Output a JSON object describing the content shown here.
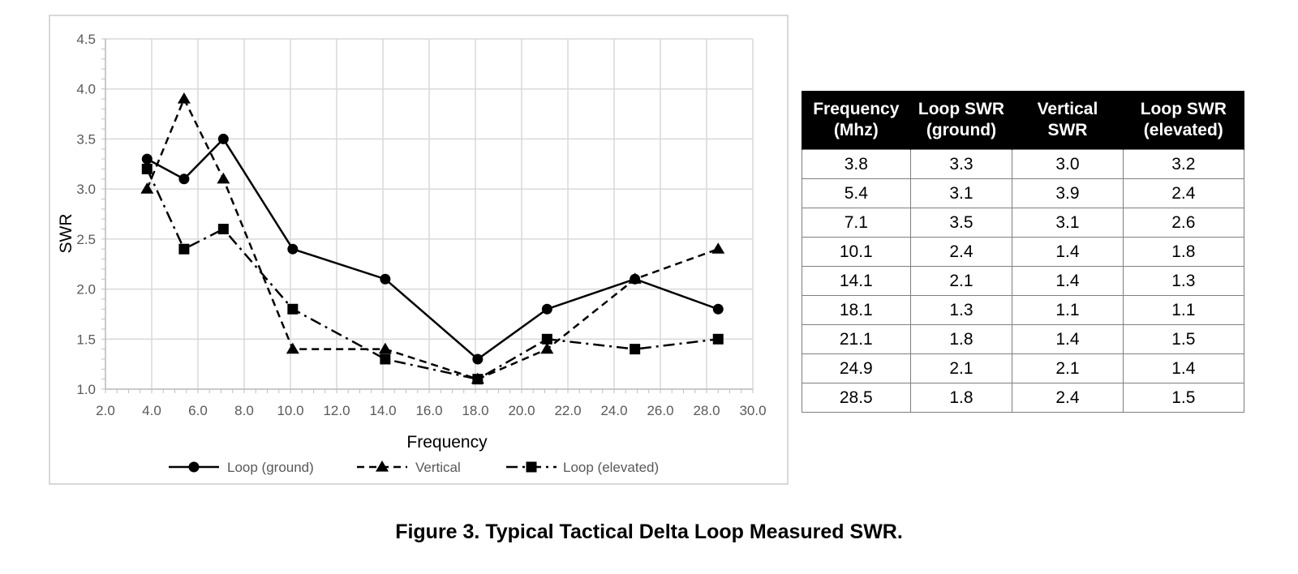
{
  "chart_data": {
    "type": "line",
    "title": "",
    "xlabel": "Frequency",
    "ylabel": "SWR",
    "xlim": [
      2.0,
      30.0
    ],
    "ylim": [
      1.0,
      4.5
    ],
    "x_ticks": [
      "2.0",
      "4.0",
      "6.0",
      "8.0",
      "10.0",
      "12.0",
      "14.0",
      "16.0",
      "18.0",
      "20.0",
      "22.0",
      "24.0",
      "26.0",
      "28.0",
      "30.0"
    ],
    "y_ticks": [
      "1.0",
      "1.5",
      "2.0",
      "2.5",
      "3.0",
      "3.5",
      "4.0",
      "4.5"
    ],
    "grid": true,
    "legend_position": "bottom",
    "x": [
      3.8,
      5.4,
      7.1,
      10.1,
      14.1,
      18.1,
      21.1,
      24.9,
      28.5
    ],
    "series": [
      {
        "name": "Loop (ground)",
        "marker": "circle",
        "line_style": "solid",
        "values": [
          3.3,
          3.1,
          3.5,
          2.4,
          2.1,
          1.3,
          1.8,
          2.1,
          1.8
        ]
      },
      {
        "name": "Vertical",
        "marker": "triangle",
        "line_style": "dashed",
        "values": [
          3.0,
          3.9,
          3.1,
          1.4,
          1.4,
          1.1,
          1.4,
          2.1,
          2.4
        ]
      },
      {
        "name": "Loop (elevated)",
        "marker": "square",
        "line_style": "dashdot",
        "values": [
          3.2,
          2.4,
          2.6,
          1.8,
          1.3,
          1.1,
          1.5,
          1.4,
          1.5
        ]
      }
    ]
  },
  "table": {
    "headers": [
      [
        "Frequency",
        "(Mhz)"
      ],
      [
        "Loop SWR",
        "(ground)"
      ],
      [
        "Vertical",
        "SWR"
      ],
      [
        "Loop SWR",
        "(elevated)"
      ]
    ],
    "rows": [
      [
        "3.8",
        "3.3",
        "3.0",
        "3.2"
      ],
      [
        "5.4",
        "3.1",
        "3.9",
        "2.4"
      ],
      [
        "7.1",
        "3.5",
        "3.1",
        "2.6"
      ],
      [
        "10.1",
        "2.4",
        "1.4",
        "1.8"
      ],
      [
        "14.1",
        "2.1",
        "1.4",
        "1.3"
      ],
      [
        "18.1",
        "1.3",
        "1.1",
        "1.1"
      ],
      [
        "21.1",
        "1.8",
        "1.4",
        "1.5"
      ],
      [
        "24.9",
        "2.1",
        "2.1",
        "1.4"
      ],
      [
        "28.5",
        "1.8",
        "2.4",
        "1.5"
      ]
    ]
  },
  "caption": "Figure 3.  Typical Tactical Delta Loop Measured SWR."
}
